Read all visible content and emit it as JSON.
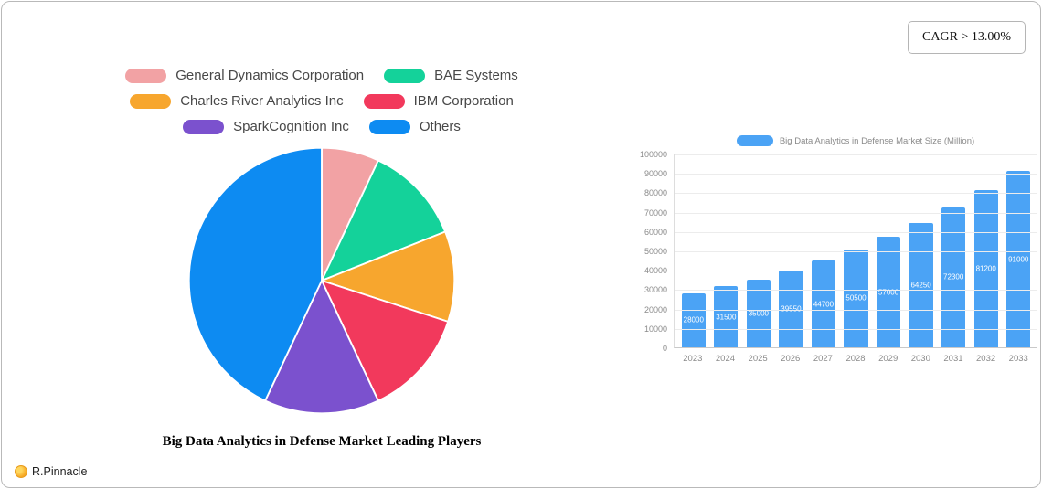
{
  "cagr_label": "CAGR > 13.00%",
  "branding": {
    "logo_text": "R.Pinnacle"
  },
  "chart_data": [
    {
      "type": "pie",
      "title": "Big Data Analytics in Defense Market Leading Players",
      "legend_position": "top",
      "slices": [
        {
          "label": "General Dynamics Corporation",
          "value": 7,
          "color": "#F2A2A4"
        },
        {
          "label": "BAE Systems",
          "value": 12,
          "color": "#14D29A"
        },
        {
          "label": "Charles River Analytics Inc",
          "value": 11,
          "color": "#F7A62E"
        },
        {
          "label": "IBM Corporation",
          "value": 13,
          "color": "#F2395C"
        },
        {
          "label": "SparkCognition Inc",
          "value": 14,
          "color": "#7B51CE"
        },
        {
          "label": "Others",
          "value": 43,
          "color": "#0D8BF2"
        }
      ]
    },
    {
      "type": "bar",
      "legend_label": "Big Data Analytics in Defense Market Size (Million)",
      "categories": [
        "2023",
        "2024",
        "2025",
        "2026",
        "2027",
        "2028",
        "2029",
        "2030",
        "2031",
        "2032",
        "2033"
      ],
      "values": [
        28000,
        31500,
        35000,
        39550,
        44700,
        50500,
        57000,
        64250,
        72300,
        81200,
        91000
      ],
      "xlabel": "",
      "ylabel": "",
      "ylim": [
        0,
        100000
      ],
      "ytick_step": 10000,
      "bar_color": "#4BA3F5",
      "grid": true,
      "legend_position": "top"
    }
  ]
}
